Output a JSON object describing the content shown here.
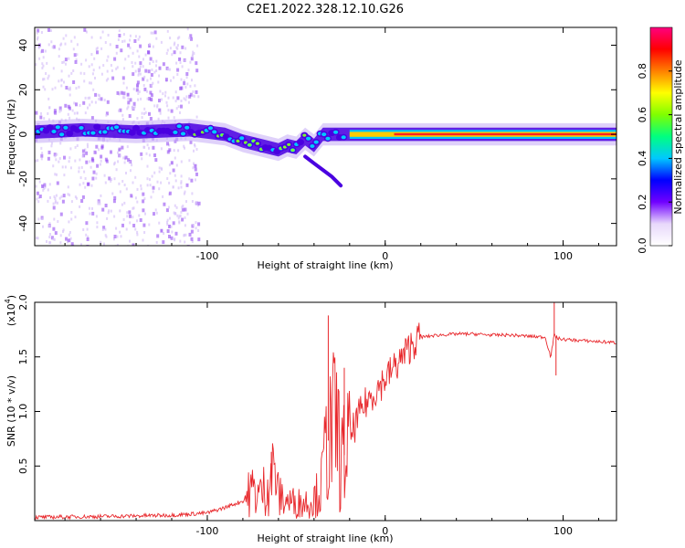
{
  "title": "C2E1.2022.328.12.10.G26",
  "top_panel": {
    "ylabel": "Frequency (Hz)",
    "xlabel": "Height of straight line (km)",
    "colorbar_label": "Normalized spectral amplitude"
  },
  "bottom_panel": {
    "ylabel": "SNR (10 * v/v)",
    "xlabel": "Height of straight line (km)",
    "scale_label": "(x10",
    "scale_exp": "4",
    "scale_close": ")"
  },
  "colors": {
    "line": "#e8282c",
    "ridge_low": "#4a00e0",
    "ridge_mid": "#00c8ff",
    "ridge_hi": "#ff2020",
    "scatter": "#8a3cf0"
  },
  "chart_data": [
    {
      "type": "heatmap",
      "title": "C2E1.2022.328.12.10.G26",
      "xlabel": "Height of straight line (km)",
      "ylabel": "Frequency (Hz)",
      "xlim": [
        -197,
        130
      ],
      "ylim": [
        -50,
        48
      ],
      "xticks": [
        -100,
        0,
        100
      ],
      "xtick_labels": [
        "-100",
        "0",
        "100"
      ],
      "yticks": [
        -40,
        -20,
        0,
        20,
        40
      ],
      "ytick_labels": [
        "-40",
        "-20",
        "0",
        "20",
        "40"
      ],
      "ridge": {
        "x": [
          -197,
          -170,
          -140,
          -110,
          -100,
          -90,
          -80,
          -70,
          -60,
          -55,
          -50,
          -45,
          -40,
          -35,
          -30,
          -20,
          -10,
          0,
          10,
          20,
          40,
          60,
          80,
          100,
          130
        ],
        "y": [
          1,
          2,
          1,
          2,
          1,
          0,
          -3,
          -5,
          -7,
          -5,
          -6,
          -2,
          -5,
          0,
          0,
          0,
          0,
          0,
          0,
          0,
          0,
          0,
          0,
          0,
          0
        ]
      },
      "branch": {
        "x": [
          -45,
          -40,
          -35,
          -30,
          -25
        ],
        "y": [
          -10,
          -13,
          -16,
          -19,
          -23
        ]
      },
      "colorbar": {
        "label": "Normalized spectral amplitude",
        "range": [
          0.0,
          1.0
        ],
        "ticks": [
          0.0,
          0.2,
          0.4,
          0.6,
          0.8
        ],
        "tick_labels": [
          "0.0",
          "0.2",
          "0.4",
          "0.6",
          "0.8"
        ],
        "stops": [
          "#ffffff",
          "#e8d8fb",
          "#7000ff",
          "#0000ff",
          "#00c8ff",
          "#00ff80",
          "#80ff00",
          "#ffff00",
          "#ff8000",
          "#ff0000",
          "#ff0080"
        ]
      }
    },
    {
      "type": "line",
      "xlabel": "Height of straight line (km)",
      "ylabel": "SNR (10 * v/v)",
      "xlim": [
        -197,
        130
      ],
      "ylim": [
        0,
        20000
      ],
      "xticks": [
        -100,
        0,
        100
      ],
      "xtick_labels": [
        "-100",
        "0",
        "100"
      ],
      "yticks": [
        5000,
        10000,
        15000,
        20000
      ],
      "ytick_labels": [
        "0.5",
        "1.0",
        "1.5",
        "2.0"
      ],
      "series": [
        {
          "name": "SNR",
          "x": [
            -197,
            -150,
            -120,
            -100,
            -90,
            -80,
            -75,
            -70,
            -65,
            -62,
            -60,
            -55,
            -50,
            -45,
            -40,
            -36,
            -33,
            -30,
            -27,
            -25,
            -20,
            -15,
            -10,
            -5,
            0,
            5,
            10,
            15,
            20,
            30,
            40,
            50,
            60,
            70,
            80,
            90,
            93,
            95,
            97,
            100,
            110,
            120,
            130
          ],
          "y": [
            300,
            400,
            500,
            700,
            1200,
            1800,
            2800,
            2400,
            3600,
            5000,
            2200,
            1800,
            1600,
            1700,
            2000,
            3000,
            7000,
            8000,
            9000,
            5000,
            7500,
            9500,
            11000,
            12000,
            13000,
            14000,
            15000,
            16200,
            16800,
            17000,
            17100,
            17100,
            17000,
            17000,
            16900,
            16800,
            15000,
            17000,
            16700,
            16600,
            16500,
            16400,
            16300
          ],
          "spikes": [
            {
              "x": -64,
              "y": 6300
            },
            {
              "x": -32,
              "y": 18800
            },
            {
              "x": -23,
              "y": 14000
            },
            {
              "x": 95,
              "y": 20000
            },
            {
              "x": 96,
              "y": 13300
            }
          ]
        }
      ]
    }
  ]
}
